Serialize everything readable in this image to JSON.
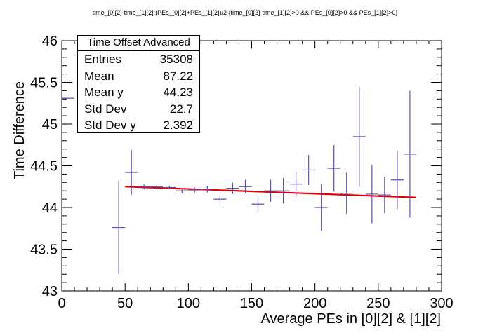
{
  "chart_data": {
    "type": "scatter",
    "title": "time_[0][2]-time_[1][2]:(PEs_[0][2]+PEs_[1][2])/2  {time_[0][2]-time_[1][2]>0 && PEs_[0][2]>0 && PEs_[1][2]>0}",
    "xlabel": "Average PEs in [0][2] & [1][2]",
    "ylabel": "Time Difference",
    "xlim": [
      0,
      300
    ],
    "ylim": [
      43,
      46
    ],
    "x_ticks": [
      "0",
      "50",
      "100",
      "150",
      "200",
      "250",
      "300"
    ],
    "y_ticks": [
      "43",
      "43.5",
      "44",
      "44.5",
      "45",
      "45.5",
      "46"
    ],
    "points": [
      {
        "x": 5,
        "y": 45.31,
        "xerr": 5,
        "yerr": 0
      },
      {
        "x": 45,
        "y": 43.76,
        "xerr": 5,
        "yerr": 0.56
      },
      {
        "x": 55,
        "y": 44.42,
        "xerr": 5,
        "yerr": 0.27
      },
      {
        "x": 65,
        "y": 44.25,
        "xerr": 5,
        "yerr": 0.03
      },
      {
        "x": 75,
        "y": 44.25,
        "xerr": 5,
        "yerr": 0.02
      },
      {
        "x": 85,
        "y": 44.24,
        "xerr": 5,
        "yerr": 0.02
      },
      {
        "x": 95,
        "y": 44.2,
        "xerr": 5,
        "yerr": 0.03
      },
      {
        "x": 105,
        "y": 44.21,
        "xerr": 5,
        "yerr": 0.03
      },
      {
        "x": 115,
        "y": 44.22,
        "xerr": 5,
        "yerr": 0.04
      },
      {
        "x": 125,
        "y": 44.1,
        "xerr": 5,
        "yerr": 0.05
      },
      {
        "x": 135,
        "y": 44.23,
        "xerr": 5,
        "yerr": 0.07
      },
      {
        "x": 145,
        "y": 44.25,
        "xerr": 5,
        "yerr": 0.08
      },
      {
        "x": 155,
        "y": 44.04,
        "xerr": 5,
        "yerr": 0.09
      },
      {
        "x": 165,
        "y": 44.2,
        "xerr": 5,
        "yerr": 0.13
      },
      {
        "x": 175,
        "y": 44.2,
        "xerr": 5,
        "yerr": 0.15
      },
      {
        "x": 185,
        "y": 44.28,
        "xerr": 5,
        "yerr": 0.15
      },
      {
        "x": 195,
        "y": 44.45,
        "xerr": 5,
        "yerr": 0.18
      },
      {
        "x": 205,
        "y": 44.0,
        "xerr": 5,
        "yerr": 0.28
      },
      {
        "x": 215,
        "y": 44.47,
        "xerr": 5,
        "yerr": 0.28
      },
      {
        "x": 225,
        "y": 44.17,
        "xerr": 5,
        "yerr": 0.25
      },
      {
        "x": 235,
        "y": 44.85,
        "xerr": 5,
        "yerr": 0.6
      },
      {
        "x": 245,
        "y": 44.16,
        "xerr": 5,
        "yerr": 0.35
      },
      {
        "x": 255,
        "y": 44.15,
        "xerr": 5,
        "yerr": 0.22
      },
      {
        "x": 265,
        "y": 44.33,
        "xerr": 5,
        "yerr": 0.35
      },
      {
        "x": 275,
        "y": 44.64,
        "xerr": 5,
        "yerr": 0.76
      }
    ],
    "fit": {
      "x": [
        50,
        280
      ],
      "y": [
        44.25,
        44.12
      ]
    },
    "colors": {
      "points": "#5b4fb3",
      "fit": "#e60000",
      "axis": "#000000"
    },
    "grid": false
  },
  "stats": {
    "title": "Time Offset Advanced",
    "rows": [
      {
        "label": "Entries",
        "value": "35308"
      },
      {
        "label": "Mean",
        "value": "87.22"
      },
      {
        "label": "Mean y",
        "value": "44.23"
      },
      {
        "label": "Std Dev",
        "value": "22.7"
      },
      {
        "label": "Std Dev y",
        "value": "2.392"
      }
    ]
  }
}
